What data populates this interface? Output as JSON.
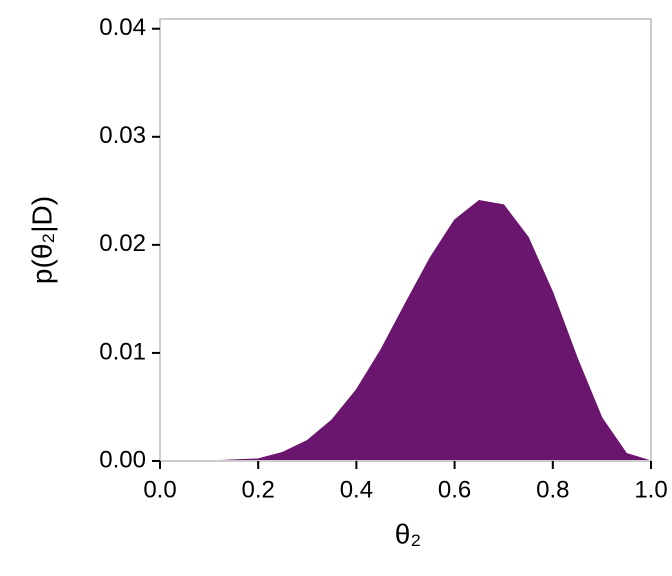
{
  "chart_data": {
    "type": "area",
    "xlabel": "θ₂",
    "ylabel": "p(θ₂|D)",
    "x": [
      0,
      0.05,
      0.1,
      0.15,
      0.2,
      0.25,
      0.3,
      0.35,
      0.4,
      0.45,
      0.5,
      0.55,
      0.6,
      0.65,
      0.7,
      0.75,
      0.8,
      0.85,
      0.9,
      0.95,
      1.0
    ],
    "values": [
      0,
      0,
      0,
      0.0001,
      0.0002,
      0.0008,
      0.0019,
      0.0038,
      0.0066,
      0.0103,
      0.0146,
      0.0188,
      0.0223,
      0.0241,
      0.0237,
      0.0207,
      0.0156,
      0.0095,
      0.004,
      0.0007,
      0
    ],
    "color": "#6b166e",
    "xlim": [
      0,
      1
    ],
    "ylim": [
      0,
      0.0409
    ],
    "xticks": [
      {
        "value": 0,
        "label": "0.0"
      },
      {
        "value": 0.2,
        "label": "0.2"
      },
      {
        "value": 0.4,
        "label": "0.4"
      },
      {
        "value": 0.6,
        "label": "0.6"
      },
      {
        "value": 0.8,
        "label": "0.8"
      },
      {
        "value": 1,
        "label": "1.0"
      }
    ],
    "yticks": [
      {
        "value": 0,
        "label": "0.00"
      },
      {
        "value": 0.01,
        "label": "0.01"
      },
      {
        "value": 0.02,
        "label": "0.02"
      },
      {
        "value": 0.03,
        "label": "0.03"
      },
      {
        "value": 0.04,
        "label": "0.04"
      }
    ]
  }
}
